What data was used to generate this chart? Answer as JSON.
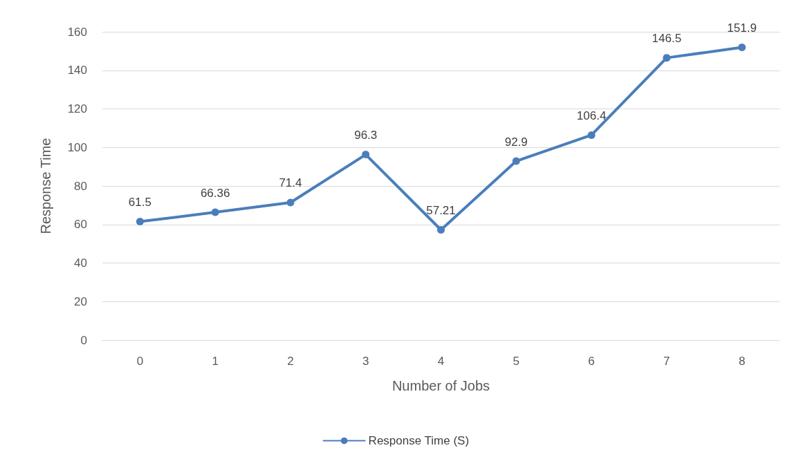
{
  "chart_data": {
    "type": "line",
    "xlabel": "Number of Jobs",
    "ylabel": "Response Time",
    "categories": [
      "0",
      "1",
      "2",
      "3",
      "4",
      "5",
      "6",
      "7",
      "8"
    ],
    "series": [
      {
        "name": "Response Time (S)",
        "color": "#4a7ebb",
        "values": [
          61.5,
          66.36,
          71.4,
          96.3,
          57.21,
          92.9,
          106.4,
          146.5,
          151.9
        ]
      }
    ],
    "ylim": [
      0,
      160
    ],
    "yticks": [
      0,
      20,
      40,
      60,
      80,
      100,
      120,
      140,
      160
    ],
    "grid": "y",
    "legend": "bottom",
    "marker": "circle",
    "line_style": "solid",
    "data_labels": true
  }
}
